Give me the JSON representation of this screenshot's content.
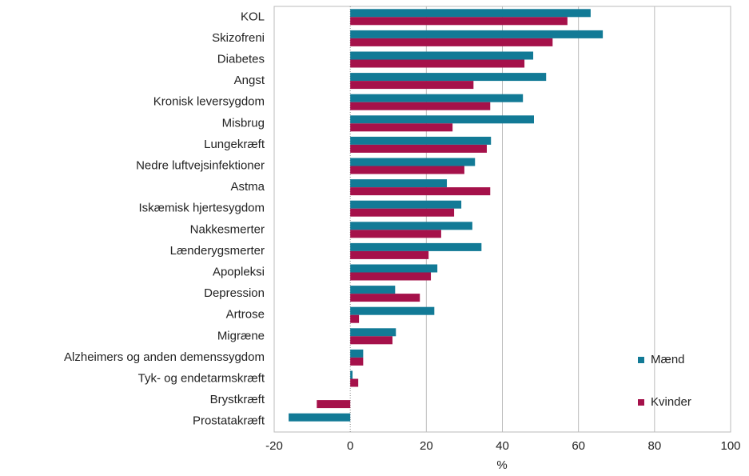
{
  "chart_data": {
    "type": "barh",
    "xlabel": "%",
    "categories": [
      "KOL",
      "Skizofreni",
      "Diabetes",
      "Angst ",
      "Kronisk leversygdom",
      "Misbrug",
      "Lungekræft",
      "Nedre luftvejsinfektioner",
      "Astma",
      "Iskæmisk hjertesygdom",
      "Nakkesmerter",
      "Lænderygsmerter",
      "Apopleksi",
      "Depression",
      "Artrose",
      "Migræne",
      "Alzheimers og anden demenssygdom",
      "Tyk- og endetarmskræft",
      "Brystkræft",
      "Prostatakræft"
    ],
    "series": [
      {
        "name": "Mænd",
        "color": "#127a96",
        "values": [
          63.2,
          66.4,
          48.1,
          51.5,
          45.4,
          48.3,
          37,
          32.8,
          25.4,
          29.2,
          32.1,
          34.5,
          22.9,
          11.8,
          22.1,
          12,
          3.4,
          0.6,
          null,
          -16.2
        ]
      },
      {
        "name": "Kvinder",
        "color": "#a5114a",
        "values": [
          57.1,
          53.2,
          45.8,
          32.4,
          36.8,
          26.9,
          35.9,
          30,
          36.8,
          27.3,
          23.9,
          20.6,
          21.2,
          18.3,
          2.3,
          11.1,
          3.4,
          2.1,
          -8.8,
          null
        ]
      }
    ],
    "xlim": [
      -20,
      100
    ],
    "xticks": [
      -20,
      0,
      20,
      40,
      60,
      80,
      100
    ],
    "grid": true
  }
}
